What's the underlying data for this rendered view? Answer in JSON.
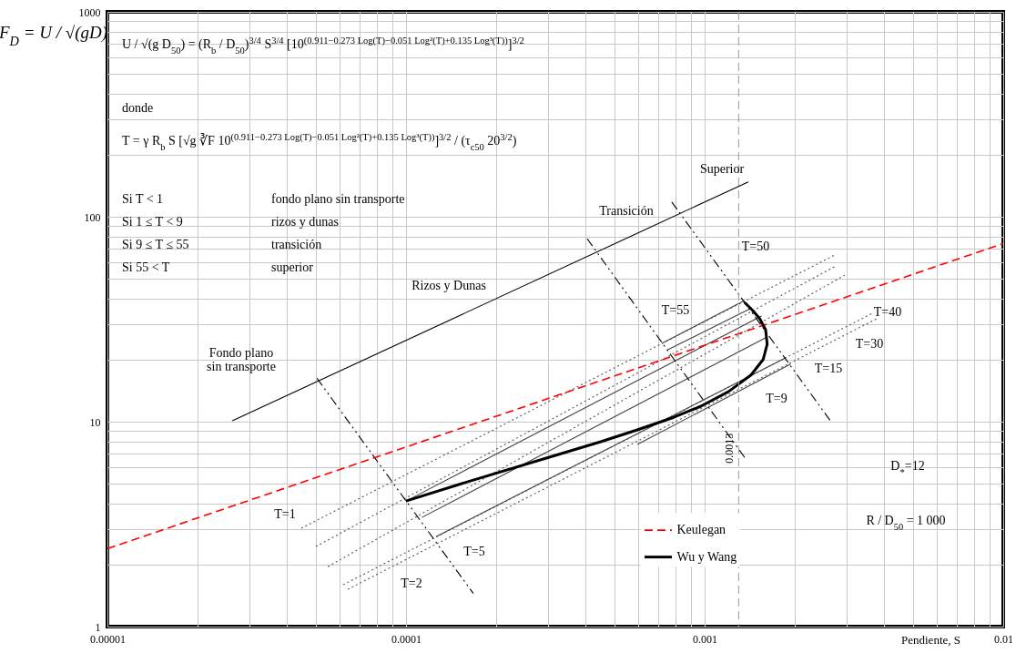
{
  "chart_data": {
    "type": "line",
    "log": "xy",
    "xlabel": "Pendiente, S",
    "ylabel": "F$_{D}$ = U / √(gD)",
    "xlim": [
      1e-05,
      0.01
    ],
    "ylim": [
      1,
      1000
    ],
    "xticks": [
      {
        "value": 1e-05,
        "label": "0.00001"
      },
      {
        "value": 0.0001,
        "label": "0.0001"
      },
      {
        "value": 0.001,
        "label": "0.001"
      },
      {
        "value": 0.01,
        "label": "0.01"
      }
    ],
    "yticks": [
      1,
      10,
      100,
      1000
    ],
    "grid": true,
    "legend": "bottom",
    "series": [
      {
        "color": "#404040",
        "line_style": "solid",
        "x": [
          0.000719,
          0.00136
        ],
        "values": [
          24.1,
          39.0
        ]
      },
      {
        "color": "#404040",
        "line_style": "solid",
        "x": [
          0.00075,
          0.00144
        ],
        "values": [
          22.4,
          35.9
        ]
      },
      {
        "color": "#404040",
        "line_style": "solid",
        "x": [
          0.0001,
          0.00155
        ],
        "values": [
          4.1,
          32.8
        ]
      },
      {
        "color": "#404040",
        "line_style": "solid",
        "x": [
          0.000113,
          0.00162
        ],
        "values": [
          3.41,
          25.9
        ]
      },
      {
        "color": "#404040",
        "line_style": "solid",
        "x": [
          0.000126,
          0.00187
        ],
        "values": [
          2.75,
          20.5
        ]
      },
      {
        "color": "#404040",
        "line_style": "solid",
        "x": [
          0.000595,
          0.00194
        ],
        "values": [
          7.74,
          19.1
        ]
      },
      {
        "color": "#555555",
        "line_style": "dotted",
        "x": [
          4.46e-05,
          0.00273
        ],
        "values": [
          3.02,
          65.1
        ]
      },
      {
        "color": "#555555",
        "line_style": "dotted",
        "x": [
          4.99e-05,
          0.00275
        ],
        "values": [
          2.46,
          57.5
        ]
      },
      {
        "color": "#555555",
        "line_style": "dotted",
        "x": [
          5.47e-05,
          0.00295
        ],
        "values": [
          1.96,
          51.9
        ]
      },
      {
        "color": "#555555",
        "line_style": "dotted",
        "x": [
          6.16e-05,
          0.00369
        ],
        "values": [
          1.6,
          34.1
        ]
      },
      {
        "color": "#555555",
        "line_style": "dotted",
        "x": [
          6.38e-05,
          0.00377
        ],
        "values": [
          1.52,
          31.8
        ]
      },
      {
        "color": "#000000",
        "line_style": "dashdot",
        "x": [
          5.03e-05,
          0.000168
        ],
        "values": [
          16.3,
          1.45
        ]
      },
      {
        "color": "#000000",
        "line_style": "dashdot",
        "x": [
          0.000404,
          0.00138
        ],
        "values": [
          78.2,
          6.51
        ]
      },
      {
        "color": "#000000",
        "line_style": "dashdot",
        "x": [
          0.000776,
          0.00265
        ],
        "values": [
          118,
          10.0
        ]
      },
      {
        "color": "#000000",
        "line_style": "solid",
        "x": [
          2.62e-05,
          0.0014
        ],
        "values": [
          10.1,
          148
        ]
      },
      {
        "name": "Keulegan",
        "color": "#ff0000",
        "line_style": "dashed",
        "x": [
          1e-05,
          0.01
        ],
        "values": [
          2.4,
          74
        ]
      },
      {
        "name": "Wu y Wang",
        "color": "#000000",
        "line_style": "solid",
        "x": [
          0.0001,
          0.000168,
          0.000295,
          0.000449,
          0.000595,
          0.000788,
          0.000972,
          0.0012,
          0.00143,
          0.00157,
          0.00162,
          0.0016,
          0.00153,
          0.00144,
          0.00136
        ],
        "values": [
          4.1,
          5.19,
          6.64,
          7.98,
          9.12,
          10.5,
          11.9,
          14.0,
          16.9,
          20.1,
          23.9,
          28.1,
          31.8,
          35.2,
          38.2
        ]
      }
    ],
    "ref_lines": [
      {
        "axis": "x",
        "value": 0.0013,
        "label": "0.0013",
        "color": "#999999",
        "line_style": "dashed"
      }
    ],
    "annotations": [
      "U / √(g D$_{50}$) = (R$_{b}$ / D$_{50}$)$^{3/4}$ S$^{3/4}$ [10$^{(0.911−0.273 Log(T)−0.051 Log²(T)+0.135 Log³(T))}$]$^{3/2}$",
      "donde",
      "T = γ R$_{b}$ S [√g ∛F 10$^{(0.911−0.273 Log(T)−0.051 Log²(T)+0.135 Log³(T))}$]$^{3/2}$ / (τ$_{c50}$ 20$^{3/2}$)",
      "Si  T < 1",
      "fondo plano sin transporte",
      "Si  1 ≤ T < 9",
      "rizos y dunas",
      "Si  9 ≤ T ≤ 55",
      "transición",
      "Si  55 < T",
      "superior",
      "Fondo plano",
      "sin transporte",
      "Rizos y Dunas",
      "Transición",
      "Superior",
      "T=1",
      "T=2",
      "T=5",
      "T=9",
      "T=15",
      "T=30",
      "T=40",
      "T=50",
      "T=55",
      "D$_{*}$=12",
      "R / D$_{50}$ = 1 000"
    ]
  }
}
